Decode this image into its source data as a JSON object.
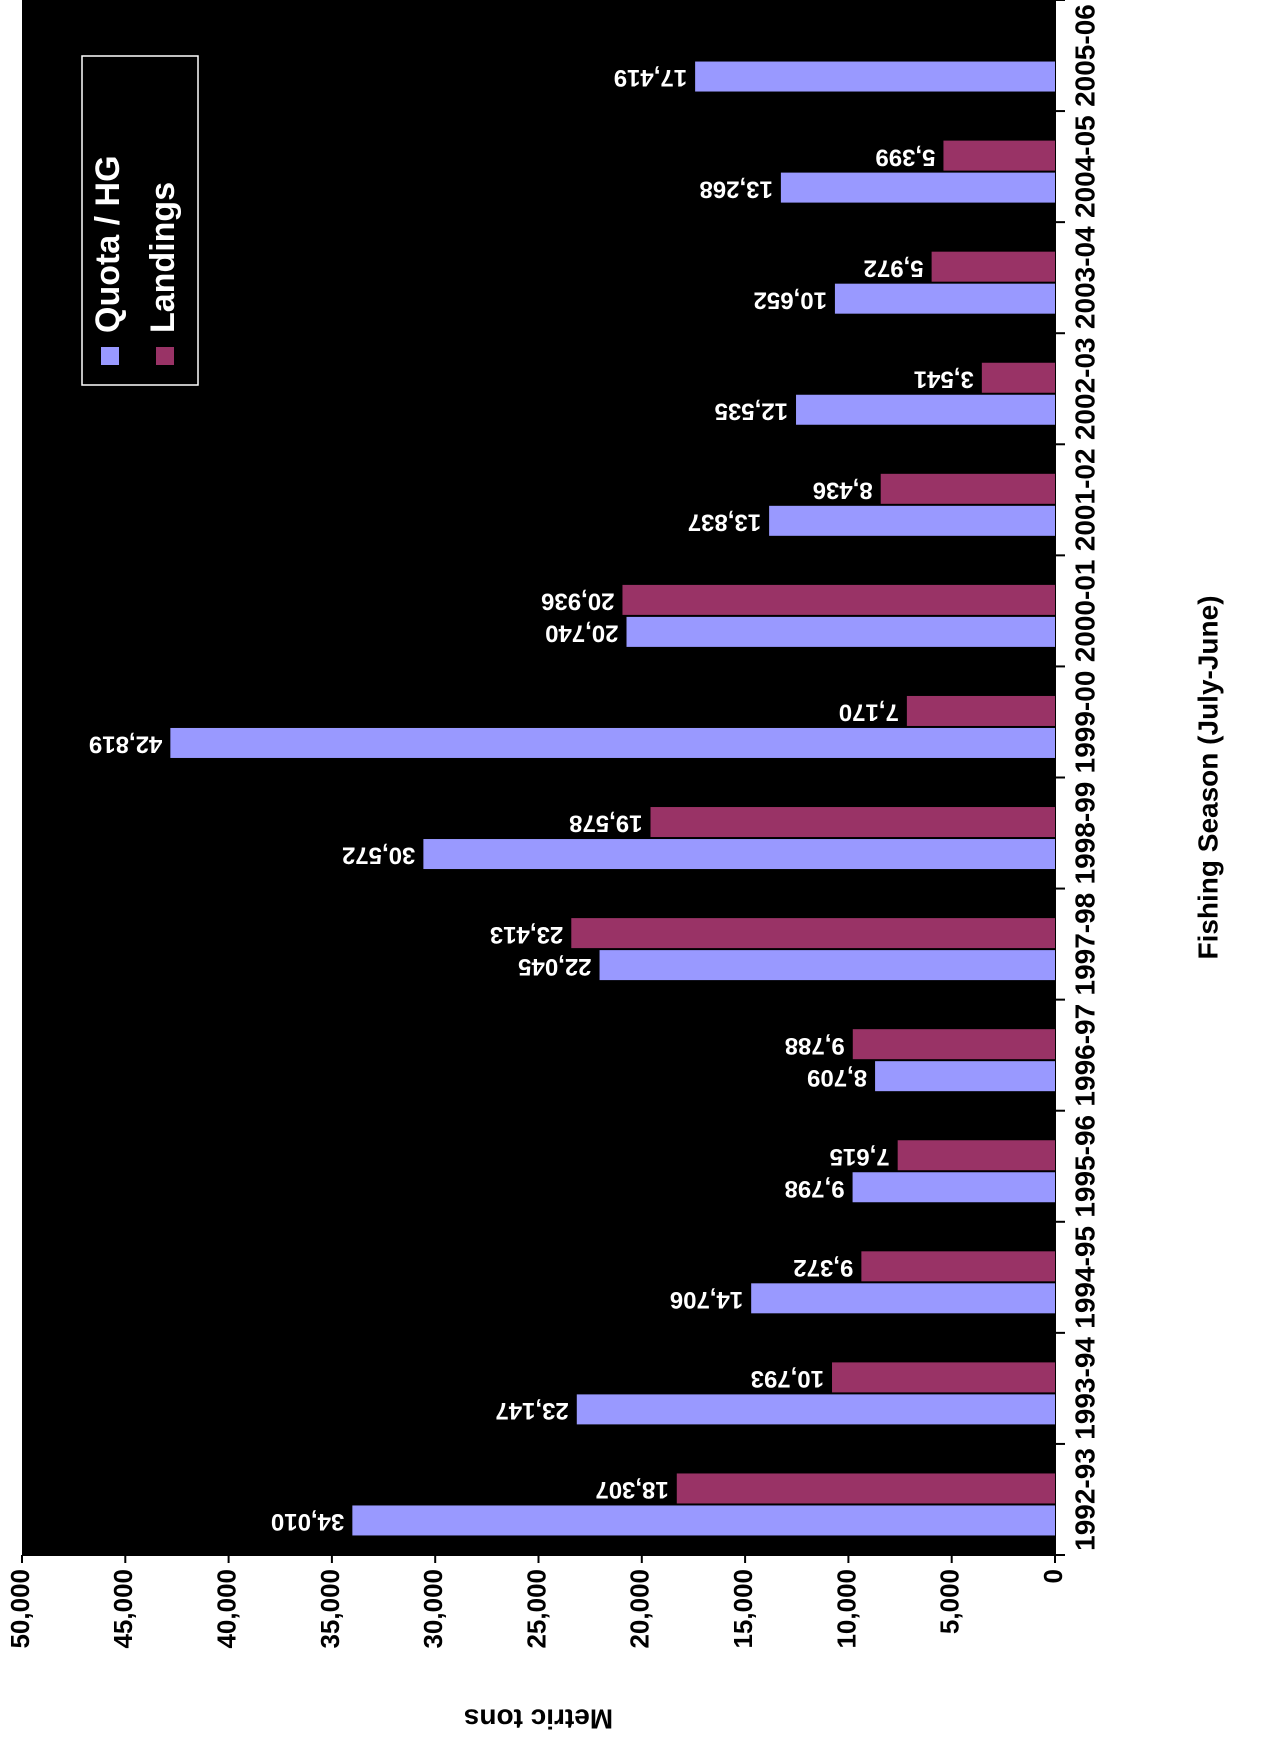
{
  "chart_data": {
    "type": "bar",
    "x_label": "Fishing Season (July-June)",
    "y_label": "Metric tons",
    "categories": [
      "1992-93",
      "1993-94",
      "1994-95",
      "1995-96",
      "1996-97",
      "1997-98",
      "1998-99",
      "1999-00",
      "2000-01",
      "2001-02",
      "2002-03",
      "2003-04",
      "2004-05",
      "2005-06"
    ],
    "series": [
      {
        "name": "Quota / HG",
        "color": "#9999ff",
        "values": [
          34010,
          23147,
          14706,
          9798,
          8709,
          22045,
          30572,
          42819,
          20740,
          13837,
          12535,
          10652,
          13268,
          17419
        ],
        "value_labels": [
          "34,010",
          "23,147",
          "14,706",
          "9,798",
          "8,709",
          "22,045",
          "30,572",
          "42,819",
          "20,740",
          "13,837",
          "12,535",
          "10,652",
          "13,268",
          "17,419"
        ]
      },
      {
        "name": "Landings",
        "color": "#993366",
        "values": [
          18307,
          10793,
          9372,
          7615,
          9788,
          23413,
          19578,
          7170,
          20936,
          8436,
          3541,
          5972,
          5399,
          null
        ],
        "value_labels": [
          "18,307",
          "10,793",
          "9,372",
          "7,615",
          "9,788",
          "23,413",
          "19,578",
          "7,170",
          "20,936",
          "8,436",
          "3,541",
          "5,972",
          "5,399",
          null
        ]
      }
    ],
    "ylim": [
      0,
      50000
    ],
    "yticks": [
      0,
      {
        "value": 5000,
        "label": "5,000"
      },
      {
        "value": 10000,
        "label": "10,000"
      },
      {
        "value": 15000,
        "label": "15,000"
      },
      {
        "value": 20000,
        "label": "20,000"
      },
      {
        "value": 25000,
        "label": "25,000"
      },
      {
        "value": 30000,
        "label": "30,000"
      },
      {
        "value": 35000,
        "label": "35,000"
      },
      {
        "value": 40000,
        "label": "40,000"
      },
      {
        "value": 45000,
        "label": "45,000"
      },
      {
        "value": 50000,
        "label": "50,000"
      }
    ],
    "plot_background": "#000000",
    "legend": "top-right"
  }
}
